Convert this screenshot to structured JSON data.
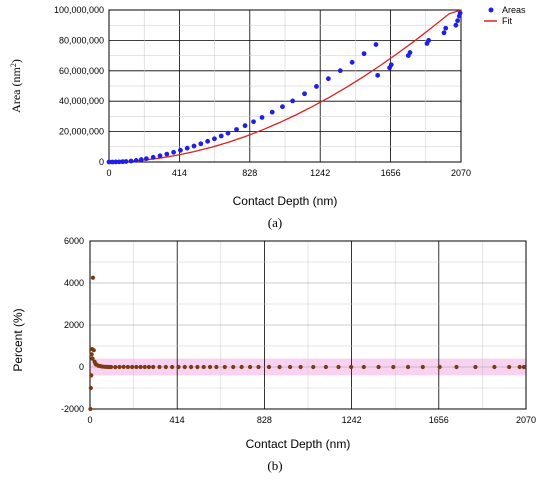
{
  "chart_data": [
    {
      "type": "scatter",
      "panel_label": "(a)",
      "xlabel": "Contact Depth (nm)",
      "ylabel_main": "Area (nm",
      "ylabel_sup": "2",
      "ylabel_end": ")",
      "xlim": [
        0,
        2070
      ],
      "ylim": [
        0,
        100000000
      ],
      "x_ticks": [
        0,
        414,
        828,
        1242,
        1656,
        2070
      ],
      "x_tick_labels": [
        "0",
        "414",
        "828",
        "1242",
        "1656",
        "2070"
      ],
      "y_ticks": [
        0,
        20000000,
        40000000,
        60000000,
        80000000,
        100000000
      ],
      "y_tick_labels": [
        "0",
        "20,000,000",
        "40,000,000",
        "60,000,000",
        "80,000,000",
        "100,000,000"
      ],
      "grid": true,
      "legend_position": "outside-top-right",
      "series": [
        {
          "name": "Areas",
          "kind": "points",
          "color": "#1f1fe6",
          "x": [
            0,
            20,
            40,
            60,
            80,
            100,
            130,
            160,
            190,
            220,
            260,
            300,
            340,
            380,
            420,
            460,
            500,
            540,
            580,
            620,
            660,
            700,
            750,
            800,
            850,
            900,
            960,
            1020,
            1080,
            1150,
            1220,
            1290,
            1360,
            1430,
            1500,
            1570,
            1580,
            1650,
            1660,
            1760,
            1770,
            1870,
            1880,
            1970,
            1980,
            2040,
            2050,
            2060,
            2065
          ],
          "y": [
            0,
            4000,
            30000,
            90000,
            200000,
            350000,
            650000,
            1050000,
            1600000,
            2200000,
            3100000,
            4100000,
            5200000,
            6400000,
            7700000,
            9100000,
            10500000,
            12000000,
            13600000,
            15300000,
            17100000,
            19000000,
            21400000,
            23900000,
            26500000,
            29300000,
            32800000,
            36400000,
            40200000,
            44900000,
            49700000,
            54800000,
            60100000,
            65600000,
            71300000,
            77300000,
            57000000,
            62000000,
            64000000,
            70000000,
            72000000,
            78000000,
            80000000,
            85000000,
            88000000,
            90000000,
            93000000,
            96000000,
            98000000
          ]
        },
        {
          "name": "Fit",
          "kind": "line",
          "color": "#e02020",
          "x": [
            0,
            100,
            200,
            300,
            400,
            500,
            600,
            700,
            800,
            900,
            1000,
            1100,
            1200,
            1300,
            1400,
            1500,
            1600,
            1700,
            1800,
            1900,
            2000,
            2070
          ],
          "y": [
            0,
            350000,
            1200000,
            2600000,
            4450000,
            6800000,
            9600000,
            12900000,
            16700000,
            21000000,
            25800000,
            31000000,
            36700000,
            42800000,
            49400000,
            56400000,
            63800000,
            71700000,
            79900000,
            88600000,
            97500000,
            100000000
          ]
        }
      ]
    },
    {
      "type": "scatter",
      "panel_label": "(b)",
      "xlabel": "Contact Depth (nm)",
      "ylabel": "Percent (%)",
      "xlim": [
        0,
        2070
      ],
      "ylim": [
        -2000,
        6000
      ],
      "x_ticks": [
        0,
        414,
        828,
        1242,
        1656,
        2070
      ],
      "x_tick_labels": [
        "0",
        "414",
        "828",
        "1242",
        "1656",
        "2070"
      ],
      "y_ticks": [
        -2000,
        0,
        2000,
        4000,
        6000
      ],
      "y_tick_labels": [
        "-2000",
        "0",
        "2000",
        "4000",
        "6000"
      ],
      "grid": true,
      "band_color": "#f4b6e8",
      "series": [
        {
          "color": "#7a3a12",
          "x": [
            2,
            4,
            6,
            8,
            10,
            12,
            14,
            18,
            22,
            26,
            30,
            40,
            50,
            60,
            70,
            80,
            90,
            100,
            120,
            140,
            160,
            180,
            200,
            220,
            240,
            260,
            280,
            300,
            330,
            360,
            390,
            420,
            450,
            480,
            510,
            540,
            570,
            600,
            640,
            680,
            720,
            760,
            800,
            850,
            900,
            950,
            1000,
            1060,
            1120,
            1180,
            1240,
            1300,
            1370,
            1440,
            1510,
            1580,
            1660,
            1740,
            1830,
            1920,
            1990,
            2040,
            2060
          ],
          "y": [
            -2000,
            -1000,
            -400,
            600,
            850,
            400,
            4250,
            800,
            250,
            150,
            120,
            60,
            40,
            20,
            10,
            5,
            0,
            0,
            -5,
            0,
            5,
            0,
            0,
            0,
            0,
            0,
            0,
            0,
            0,
            0,
            0,
            0,
            0,
            0,
            0,
            0,
            0,
            0,
            0,
            0,
            0,
            0,
            0,
            0,
            0,
            0,
            0,
            0,
            0,
            0,
            0,
            0,
            0,
            0,
            0,
            0,
            0,
            0,
            0,
            0,
            0,
            0,
            0
          ]
        }
      ]
    }
  ]
}
